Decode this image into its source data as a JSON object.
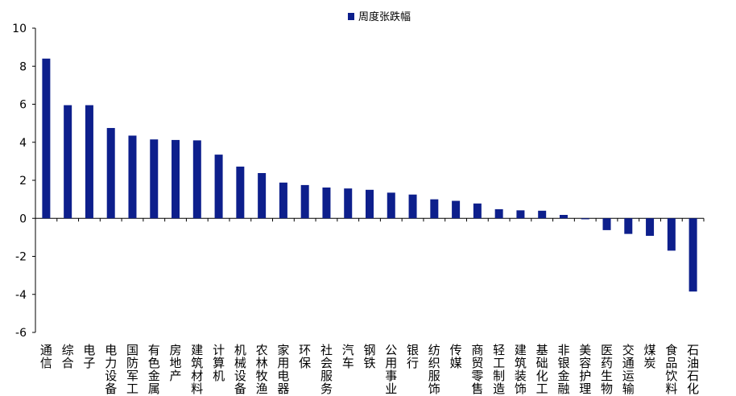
{
  "chart_data": {
    "type": "bar",
    "title": "",
    "xlabel": "",
    "ylabel": "",
    "ylim": [
      -6,
      10
    ],
    "yticks": [
      10,
      8,
      6,
      4,
      2,
      0,
      -2,
      -4,
      -6
    ],
    "legend": {
      "position": "top-center",
      "label": "周度张跌幅"
    },
    "grid": false,
    "colors": {
      "bar": "#0d1f8c",
      "axis": "#000000"
    },
    "categories": [
      "通信",
      "综合",
      "电子",
      "电力设备",
      "国防军工",
      "有色金属",
      "房地产",
      "建筑材料",
      "计算机",
      "机械设备",
      "农林牧渔",
      "家用电器",
      "环保",
      "社会服务",
      "汽车",
      "钢铁",
      "公用事业",
      "银行",
      "纺织服饰",
      "传媒",
      "商贸零售",
      "轻工制造",
      "建筑装饰",
      "基础化工",
      "非银金融",
      "美容护理",
      "医药生物",
      "交通运输",
      "煤炭",
      "食品饮料",
      "石油石化"
    ],
    "series": [
      {
        "name": "周度张跌幅",
        "values": [
          8.4,
          5.95,
          5.95,
          4.75,
          4.35,
          4.15,
          4.12,
          4.1,
          3.35,
          2.72,
          2.38,
          1.88,
          1.75,
          1.62,
          1.57,
          1.5,
          1.35,
          1.25,
          1.0,
          0.92,
          0.78,
          0.48,
          0.42,
          0.4,
          0.18,
          -0.05,
          -0.62,
          -0.82,
          -0.92,
          -1.7,
          -3.85
        ]
      }
    ]
  }
}
